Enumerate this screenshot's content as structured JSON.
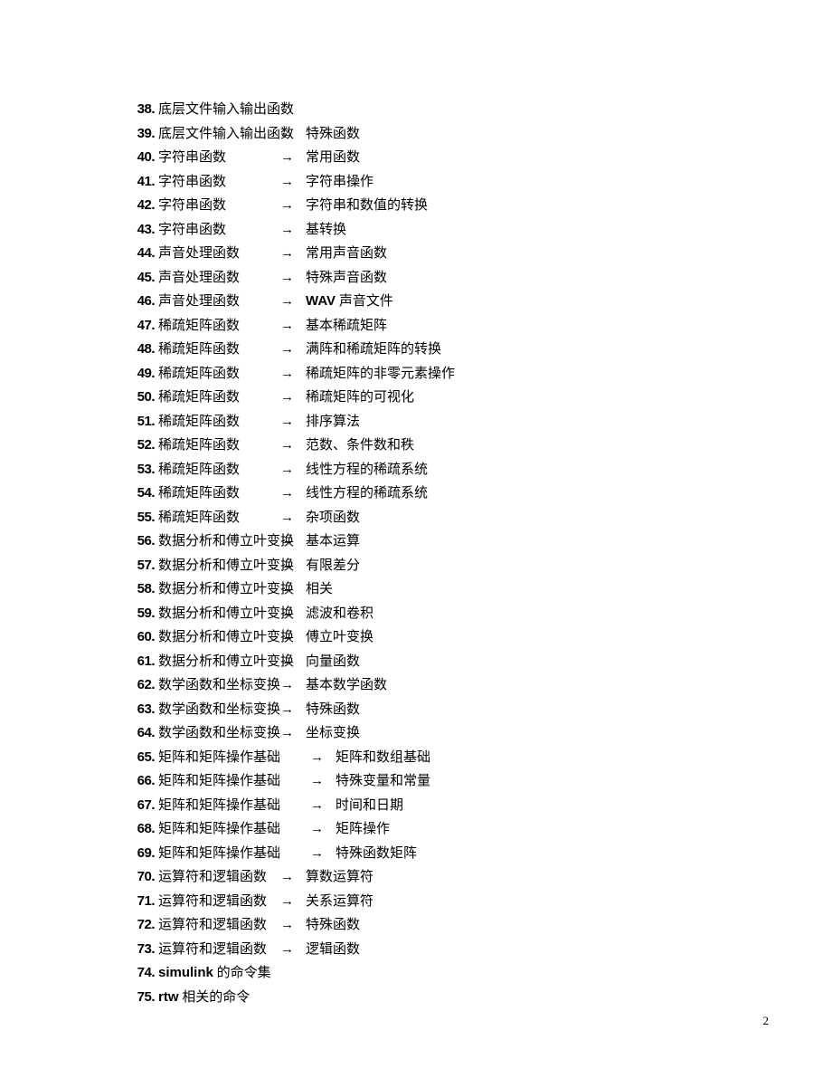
{
  "page_number": "2",
  "layout": {
    "arrow_glyph": "→",
    "arrow_left_default": 310,
    "arrow_left_shifted": 343,
    "sub_left_default": 338,
    "sub_left_shifted": 371,
    "row_height": 26.5
  },
  "items": [
    {
      "num": "38.",
      "cat": "底层文件输入输出函数",
      "arrow": false,
      "sub": "",
      "shift": false
    },
    {
      "num": "39.",
      "cat": "底层文件输入输出函数",
      "arrow": true,
      "sub": "特殊函数",
      "shift": false
    },
    {
      "num": "40.",
      "cat": "字符串函数",
      "arrow": true,
      "sub": "常用函数",
      "shift": false
    },
    {
      "num": "41.",
      "cat": "字符串函数",
      "arrow": true,
      "sub": "字符串操作",
      "shift": false
    },
    {
      "num": "42.",
      "cat": "字符串函数",
      "arrow": true,
      "sub": "字符串和数值的转换",
      "shift": false
    },
    {
      "num": "43.",
      "cat": "字符串函数",
      "arrow": true,
      "sub": "基转换",
      "shift": false
    },
    {
      "num": "44.",
      "cat": "声音处理函数",
      "arrow": true,
      "sub": "常用声音函数",
      "shift": false
    },
    {
      "num": "45.",
      "cat": "声音处理函数",
      "arrow": true,
      "sub": "特殊声音函数",
      "shift": false
    },
    {
      "num": "46.",
      "cat": "声音处理函数",
      "arrow": true,
      "sub_bold": "WAV",
      "sub_rest": " 声音文件",
      "shift": false
    },
    {
      "num": "47.",
      "cat": "稀疏矩阵函数",
      "arrow": true,
      "sub": "基本稀疏矩阵",
      "shift": false
    },
    {
      "num": "48.",
      "cat": "稀疏矩阵函数",
      "arrow": true,
      "sub": "满阵和稀疏矩阵的转换",
      "shift": false
    },
    {
      "num": "49.",
      "cat": "稀疏矩阵函数",
      "arrow": true,
      "sub": "稀疏矩阵的非零元素操作",
      "shift": false
    },
    {
      "num": "50.",
      "cat": "稀疏矩阵函数",
      "arrow": true,
      "sub": "稀疏矩阵的可视化",
      "shift": false
    },
    {
      "num": "51.",
      "cat": "稀疏矩阵函数",
      "arrow": true,
      "sub": "排序算法",
      "shift": false
    },
    {
      "num": "52.",
      "cat": "稀疏矩阵函数",
      "arrow": true,
      "sub": "范数、条件数和秩",
      "shift": false
    },
    {
      "num": "53.",
      "cat": "稀疏矩阵函数",
      "arrow": true,
      "sub": "线性方程的稀疏系统",
      "shift": false
    },
    {
      "num": "54.",
      "cat": "稀疏矩阵函数",
      "arrow": true,
      "sub": "线性方程的稀疏系统",
      "shift": false
    },
    {
      "num": "55.",
      "cat": "稀疏矩阵函数",
      "arrow": true,
      "sub": "杂项函数",
      "shift": false
    },
    {
      "num": "56.",
      "cat": "数据分析和傅立叶变换",
      "arrow": true,
      "sub": "基本运算",
      "shift": false
    },
    {
      "num": "57.",
      "cat": "数据分析和傅立叶变换",
      "arrow": true,
      "sub": "有限差分",
      "shift": false
    },
    {
      "num": "58.",
      "cat": "数据分析和傅立叶变换",
      "arrow": true,
      "sub": "相关",
      "shift": false
    },
    {
      "num": "59.",
      "cat": "数据分析和傅立叶变换",
      "arrow": true,
      "sub": "滤波和卷积",
      "shift": false
    },
    {
      "num": "60.",
      "cat": "数据分析和傅立叶变换",
      "arrow": true,
      "sub": "傅立叶变换",
      "shift": false
    },
    {
      "num": "61.",
      "cat": "数据分析和傅立叶变换",
      "arrow": true,
      "sub": "向量函数",
      "shift": false
    },
    {
      "num": "62.",
      "cat": "数学函数和坐标变换",
      "arrow": true,
      "sub": "基本数学函数",
      "shift": false
    },
    {
      "num": "63.",
      "cat": "数学函数和坐标变换",
      "arrow": true,
      "sub": "特殊函数",
      "shift": false
    },
    {
      "num": "64.",
      "cat": "数学函数和坐标变换",
      "arrow": true,
      "sub": "坐标变换",
      "shift": false
    },
    {
      "num": "65.",
      "cat": "矩阵和矩阵操作基础",
      "arrow": true,
      "sub": "矩阵和数组基础",
      "shift": true
    },
    {
      "num": "66.",
      "cat": "矩阵和矩阵操作基础",
      "arrow": true,
      "sub": "特殊变量和常量",
      "shift": true
    },
    {
      "num": "67.",
      "cat": "矩阵和矩阵操作基础",
      "arrow": true,
      "sub": "时间和日期",
      "shift": true
    },
    {
      "num": "68.",
      "cat": "矩阵和矩阵操作基础",
      "arrow": true,
      "sub": "矩阵操作",
      "shift": true
    },
    {
      "num": "69.",
      "cat": "矩阵和矩阵操作基础",
      "arrow": true,
      "sub": "特殊函数矩阵",
      "shift": true
    },
    {
      "num": "70.",
      "cat": "运算符和逻辑函数",
      "arrow": true,
      "sub": "算数运算符",
      "shift": false
    },
    {
      "num": "71.",
      "cat": "运算符和逻辑函数",
      "arrow": true,
      "sub": "关系运算符",
      "shift": false
    },
    {
      "num": "72.",
      "cat": "运算符和逻辑函数",
      "arrow": true,
      "sub": "特殊函数",
      "shift": false
    },
    {
      "num": "73.",
      "cat": "运算符和逻辑函数",
      "arrow": true,
      "sub": "逻辑函数",
      "shift": false
    },
    {
      "num": "74.",
      "cat_bold": "simulink",
      "cat_rest": " 的命令集",
      "arrow": false,
      "sub": "",
      "shift": false
    },
    {
      "num": "75.",
      "cat_bold": "rtw",
      "cat_rest": " 相关的命令",
      "arrow": false,
      "sub": "",
      "shift": false
    }
  ]
}
